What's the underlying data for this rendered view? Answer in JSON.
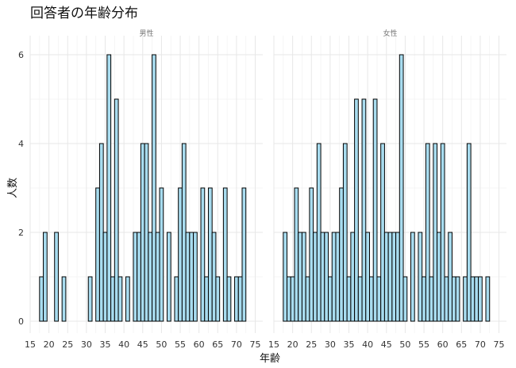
{
  "chart_data": {
    "type": "bar",
    "title": "回答者の年齢分布",
    "xlabel": "年齢",
    "ylabel": "人数",
    "xlim": [
      15,
      77
    ],
    "ylim": [
      0,
      6.3
    ],
    "x_ticks": [
      15,
      20,
      25,
      30,
      35,
      40,
      45,
      50,
      55,
      60,
      65,
      70,
      75
    ],
    "y_ticks": [
      0,
      2,
      4,
      6
    ],
    "bin_width": 1,
    "grid": true,
    "colors": {
      "fill": "#a8dcef",
      "stroke": "#000000"
    },
    "panels": [
      {
        "name": "男性",
        "bins": [
          [
            18,
            1
          ],
          [
            19,
            2
          ],
          [
            22,
            2
          ],
          [
            24,
            1
          ],
          [
            31,
            1
          ],
          [
            33,
            3
          ],
          [
            34,
            4
          ],
          [
            35,
            2
          ],
          [
            36,
            6
          ],
          [
            37,
            1
          ],
          [
            38,
            5
          ],
          [
            39,
            1
          ],
          [
            41,
            1
          ],
          [
            43,
            2
          ],
          [
            44,
            2
          ],
          [
            45,
            4
          ],
          [
            46,
            4
          ],
          [
            47,
            2
          ],
          [
            48,
            6
          ],
          [
            49,
            2
          ],
          [
            50,
            3
          ],
          [
            52,
            2
          ],
          [
            54,
            1
          ],
          [
            55,
            3
          ],
          [
            56,
            4
          ],
          [
            57,
            2
          ],
          [
            58,
            2
          ],
          [
            59,
            2
          ],
          [
            61,
            3
          ],
          [
            62,
            1
          ],
          [
            63,
            3
          ],
          [
            64,
            2
          ],
          [
            65,
            1
          ],
          [
            67,
            3
          ],
          [
            68,
            1
          ],
          [
            70,
            1
          ],
          [
            71,
            1
          ],
          [
            72,
            3
          ]
        ]
      },
      {
        "name": "女性",
        "bins": [
          [
            18,
            2
          ],
          [
            19,
            1
          ],
          [
            20,
            1
          ],
          [
            21,
            3
          ],
          [
            22,
            2
          ],
          [
            23,
            2
          ],
          [
            24,
            1
          ],
          [
            25,
            3
          ],
          [
            26,
            2
          ],
          [
            27,
            4
          ],
          [
            28,
            2
          ],
          [
            29,
            2
          ],
          [
            30,
            1
          ],
          [
            31,
            2
          ],
          [
            32,
            2
          ],
          [
            33,
            3
          ],
          [
            34,
            4
          ],
          [
            35,
            1
          ],
          [
            36,
            2
          ],
          [
            37,
            5
          ],
          [
            38,
            1
          ],
          [
            39,
            5
          ],
          [
            40,
            2
          ],
          [
            41,
            1
          ],
          [
            42,
            5
          ],
          [
            43,
            1
          ],
          [
            44,
            4
          ],
          [
            45,
            2
          ],
          [
            46,
            2
          ],
          [
            47,
            2
          ],
          [
            48,
            2
          ],
          [
            49,
            6
          ],
          [
            50,
            1
          ],
          [
            52,
            2
          ],
          [
            54,
            2
          ],
          [
            55,
            1
          ],
          [
            56,
            4
          ],
          [
            57,
            1
          ],
          [
            58,
            4
          ],
          [
            59,
            2
          ],
          [
            60,
            4
          ],
          [
            61,
            1
          ],
          [
            62,
            2
          ],
          [
            63,
            1
          ],
          [
            64,
            1
          ],
          [
            66,
            1
          ],
          [
            67,
            4
          ],
          [
            68,
            1
          ],
          [
            69,
            1
          ],
          [
            70,
            1
          ],
          [
            72,
            1
          ]
        ]
      }
    ]
  }
}
